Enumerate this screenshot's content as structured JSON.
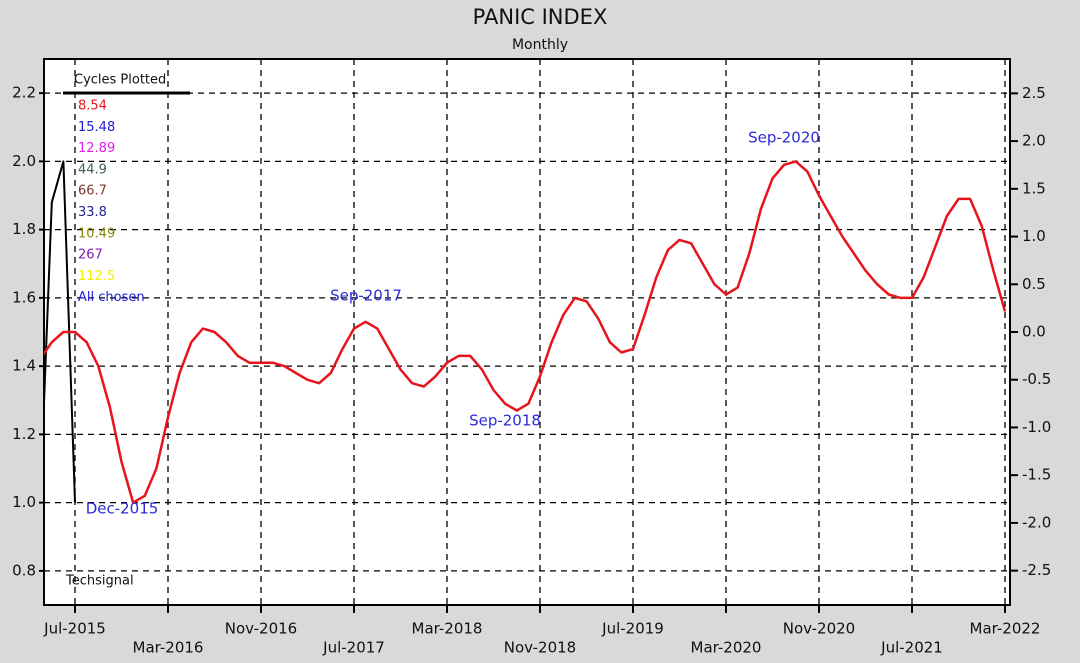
{
  "chart_data": {
    "type": "line",
    "title": "PANIC INDEX",
    "subtitle": "Monthly",
    "watermark": "Techsignal",
    "categories": [
      null,
      null,
      null,
      "Jul-2015",
      null,
      null,
      null,
      null,
      null,
      null,
      null,
      "Mar-2016",
      null,
      null,
      null,
      null,
      null,
      null,
      null,
      "Nov-2016",
      null,
      null,
      null,
      null,
      null,
      null,
      null,
      "Jul-2017",
      null,
      null,
      null,
      null,
      null,
      null,
      null,
      "Mar-2018",
      null,
      null,
      null,
      null,
      null,
      null,
      null,
      "Nov-2018",
      null,
      null,
      null,
      null,
      null,
      null,
      null,
      "Jul-2019",
      null,
      null,
      null,
      null,
      null,
      null,
      null,
      "Mar-2020",
      null,
      null,
      null,
      null,
      null,
      null,
      null,
      "Nov-2020",
      null,
      null,
      null,
      null,
      null,
      null,
      null,
      "Jul-2021",
      null,
      null,
      null,
      null,
      null,
      null,
      null,
      "Mar-2022"
    ],
    "series": [
      {
        "color": "#e8141b",
        "values": [
          1.42,
          1.47,
          1.5,
          1.5,
          1.47,
          1.4,
          1.28,
          1.12,
          1.0,
          1.02,
          1.1,
          1.25,
          1.38,
          1.47,
          1.51,
          1.5,
          1.47,
          1.43,
          1.41,
          1.41,
          1.41,
          1.4,
          1.38,
          1.36,
          1.35,
          1.38,
          1.45,
          1.51,
          1.53,
          1.51,
          1.45,
          1.39,
          1.35,
          1.34,
          1.37,
          1.41,
          1.43,
          1.43,
          1.39,
          1.33,
          1.29,
          1.27,
          1.29,
          1.37,
          1.47,
          1.55,
          1.6,
          1.59,
          1.54,
          1.47,
          1.44,
          1.45,
          1.55,
          1.66,
          1.74,
          1.77,
          1.76,
          1.7,
          1.64,
          1.61,
          1.63,
          1.73,
          1.86,
          1.95,
          1.99,
          2.0,
          1.97,
          1.9,
          1.84,
          1.78,
          1.73,
          1.68,
          1.64,
          1.61,
          1.6,
          1.6,
          1.66,
          1.75,
          1.84,
          1.89,
          1.89,
          1.81,
          1.68,
          1.56
        ]
      },
      {
        "color": "#000000",
        "values": [
          1.0,
          1.88,
          2.0,
          1.0,
          null,
          null,
          null,
          null,
          null,
          null,
          null,
          null,
          null,
          null,
          null,
          null,
          null,
          null,
          null,
          null,
          null,
          null,
          null,
          null,
          null,
          null,
          null,
          null,
          null,
          null,
          null,
          null,
          null,
          null,
          null,
          null,
          null,
          null,
          null,
          null,
          null,
          null,
          null,
          null,
          null,
          null,
          null,
          null,
          null,
          null,
          null,
          null,
          null,
          null,
          null,
          null,
          null,
          null,
          null,
          null,
          null,
          null,
          null,
          null,
          null,
          null,
          null,
          null,
          null,
          null,
          null,
          null,
          null,
          null,
          null,
          null,
          null,
          null,
          null,
          null,
          null,
          null,
          null,
          null
        ]
      }
    ],
    "ylim": [
      0.7,
      2.3
    ],
    "yticks": [
      0.8,
      {
        "value": 1,
        "label": "1.0"
      },
      1.2,
      1.4,
      1.6,
      1.8,
      {
        "value": 2,
        "label": "2.0"
      },
      2.2
    ],
    "y2lim": [
      -2.86,
      2.86
    ],
    "y2ticks": [
      {
        "value": -2.5,
        "label": "-2.5"
      },
      {
        "value": -2,
        "label": "-2.0"
      },
      {
        "value": -1.5,
        "label": "-1.5"
      },
      {
        "value": -1,
        "label": "-1.0"
      },
      {
        "value": -0.5,
        "label": "-0.5"
      },
      {
        "value": 0,
        "label": "0.0"
      },
      0.5,
      {
        "value": 1,
        "label": "1.0"
      },
      1.5,
      {
        "value": 2,
        "label": "2.0"
      },
      2.5
    ],
    "grid": true,
    "annotations": [
      "Dec-2015",
      "Sep-2017",
      "Sep-2018",
      "Sep-2020"
    ],
    "annotation_color": "#2b2bd6",
    "legend": {
      "title": "Cycles Plotted",
      "items": [
        {
          "label": "8.54",
          "color": "#e8141b"
        },
        {
          "label": "15.48",
          "color": "#1c1cd8"
        },
        {
          "label": "12.89",
          "color": "#e21ee2"
        },
        {
          "label": "44.9",
          "color": "#3f5f5f"
        },
        {
          "label": "66.7",
          "color": "#7a3b2e"
        },
        {
          "label": "33.8",
          "color": "#23238f"
        },
        {
          "label": "10.49",
          "color": "#8a8a10"
        },
        {
          "label": "267",
          "color": "#7b1fa8"
        },
        {
          "label": "112.5",
          "color": "#f2ef00"
        },
        {
          "label": "All chosen",
          "color": "#1c1cd8"
        }
      ]
    }
  }
}
